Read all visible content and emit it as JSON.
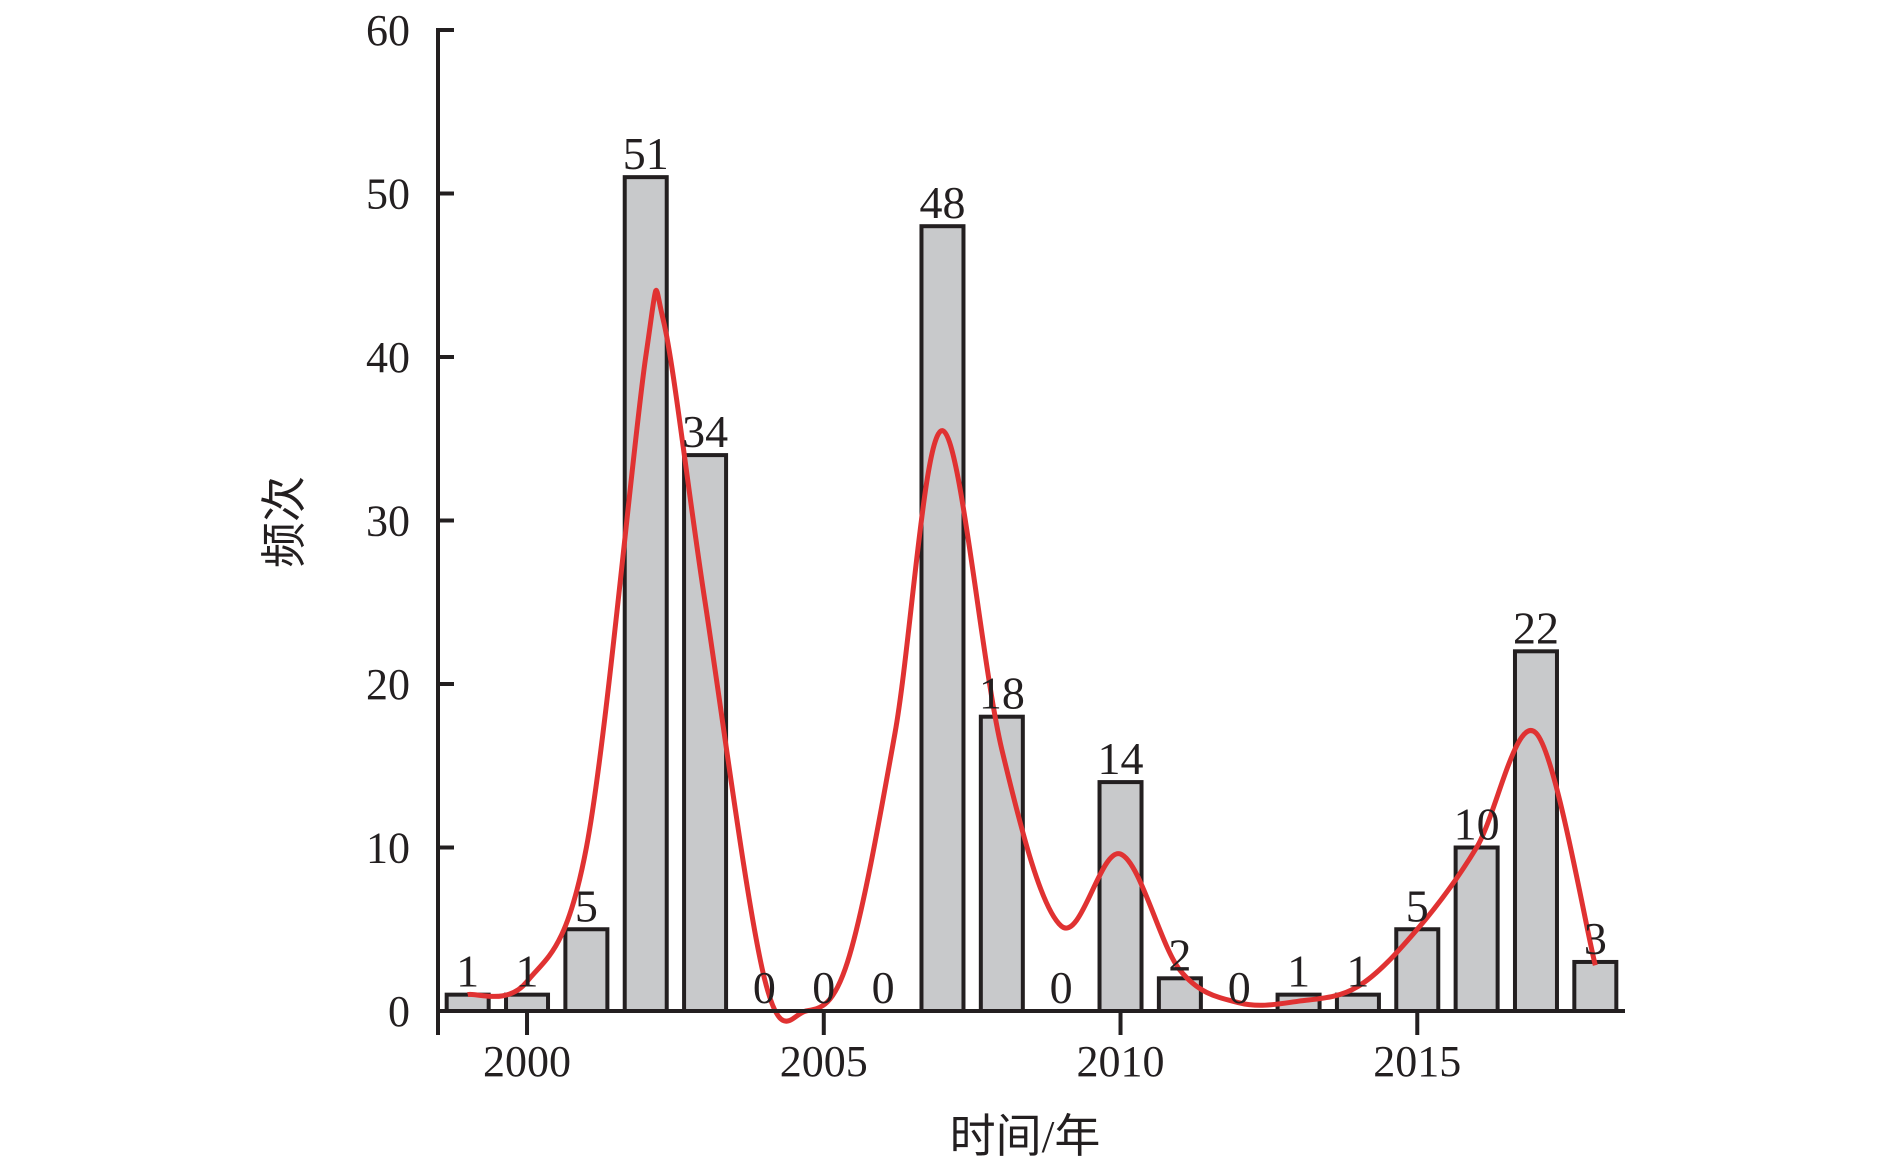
{
  "chart_data": {
    "type": "bar",
    "title": "",
    "xlabel": "时间/年",
    "ylabel": "频次",
    "x": [
      1999,
      2000,
      2001,
      2002,
      2003,
      2004,
      2005,
      2006,
      2007,
      2008,
      2009,
      2010,
      2011,
      2012,
      2013,
      2014,
      2015,
      2016,
      2017,
      2018
    ],
    "values": [
      1,
      1,
      5,
      51,
      34,
      0,
      0,
      0,
      48,
      18,
      0,
      14,
      2,
      0,
      1,
      1,
      5,
      10,
      22,
      3
    ],
    "value_labels": [
      "1",
      "1",
      "5",
      "51",
      "34",
      "0",
      "0",
      "0",
      "48",
      "18",
      "0",
      "14",
      "2",
      "0",
      "1",
      "1",
      "5",
      "10",
      "22",
      "3"
    ],
    "x_ticks": [
      "2000",
      "2005",
      "2010",
      "2015"
    ],
    "y_ticks": [
      "0",
      "10",
      "20",
      "30",
      "40",
      "50",
      "60"
    ],
    "ylim": [
      0,
      60
    ],
    "xlim": [
      1998.5,
      2018.5
    ],
    "grid": false,
    "bar_color": "#c8c9cb",
    "bar_edge_color": "#231f20",
    "curve": {
      "color": "#e03232",
      "description_points": [
        [
          1999,
          1.0
        ],
        [
          2000,
          1.8
        ],
        [
          2001,
          10
        ],
        [
          2002,
          40
        ],
        [
          2002.3,
          42.2
        ],
        [
          2003,
          25
        ],
        [
          2004,
          2
        ],
        [
          2004.7,
          0
        ],
        [
          2005.4,
          3
        ],
        [
          2006.2,
          17
        ],
        [
          2007.0,
          35.5
        ],
        [
          2008.0,
          16
        ],
        [
          2009.0,
          5.2
        ],
        [
          2010.0,
          9.6
        ],
        [
          2011.0,
          2.5
        ],
        [
          2012.0,
          0.5
        ],
        [
          2013.0,
          0.6
        ],
        [
          2014.0,
          1.5
        ],
        [
          2015.0,
          5
        ],
        [
          2016.0,
          10
        ],
        [
          2017.0,
          17
        ],
        [
          2018.0,
          2.8
        ]
      ]
    }
  }
}
